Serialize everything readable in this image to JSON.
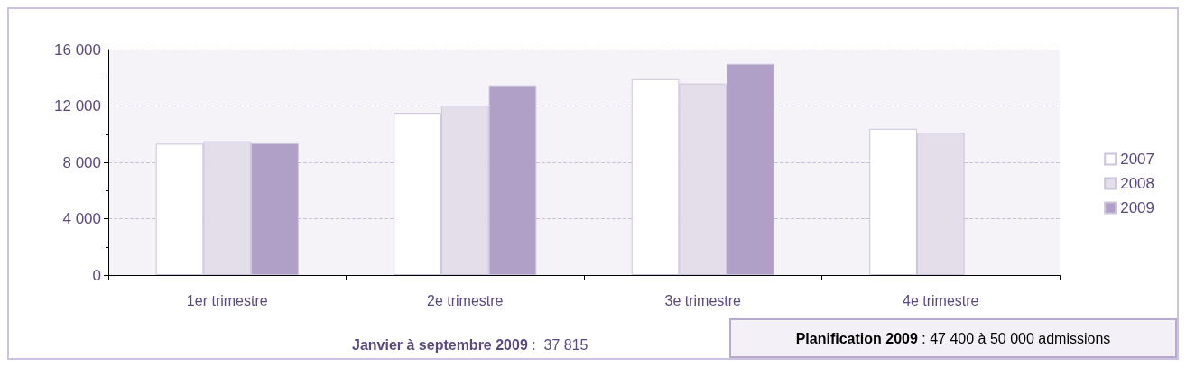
{
  "chart_data": {
    "type": "bar",
    "categories": [
      "1er trimestre",
      "2e trimestre",
      "3e trimestre",
      "4e trimestre"
    ],
    "series": [
      {
        "name": "2007",
        "color": "#ffffff",
        "values": [
          9320,
          11510,
          13900,
          10380
        ]
      },
      {
        "name": "2008",
        "color": "#e4deeb",
        "values": [
          9490,
          12030,
          13590,
          10100
        ]
      },
      {
        "name": "2009",
        "color": "#b09fc7",
        "values": [
          9350,
          13460,
          14990,
          null
        ]
      }
    ],
    "ylim": [
      0,
      16000
    ],
    "yticks": [
      {
        "value": 0,
        "label": "0"
      },
      {
        "value": 4000,
        "label": "4 000"
      },
      {
        "value": 8000,
        "label": "8 000"
      },
      {
        "value": 12000,
        "label": "12 000"
      },
      {
        "value": 16000,
        "label": "16 000"
      }
    ],
    "grid": "y",
    "legend": "right",
    "annotations": [
      "Janvier à septembre 2009 : 37 815",
      "Planification 2009 : 47 400 à 50 000 admissions"
    ]
  }
}
